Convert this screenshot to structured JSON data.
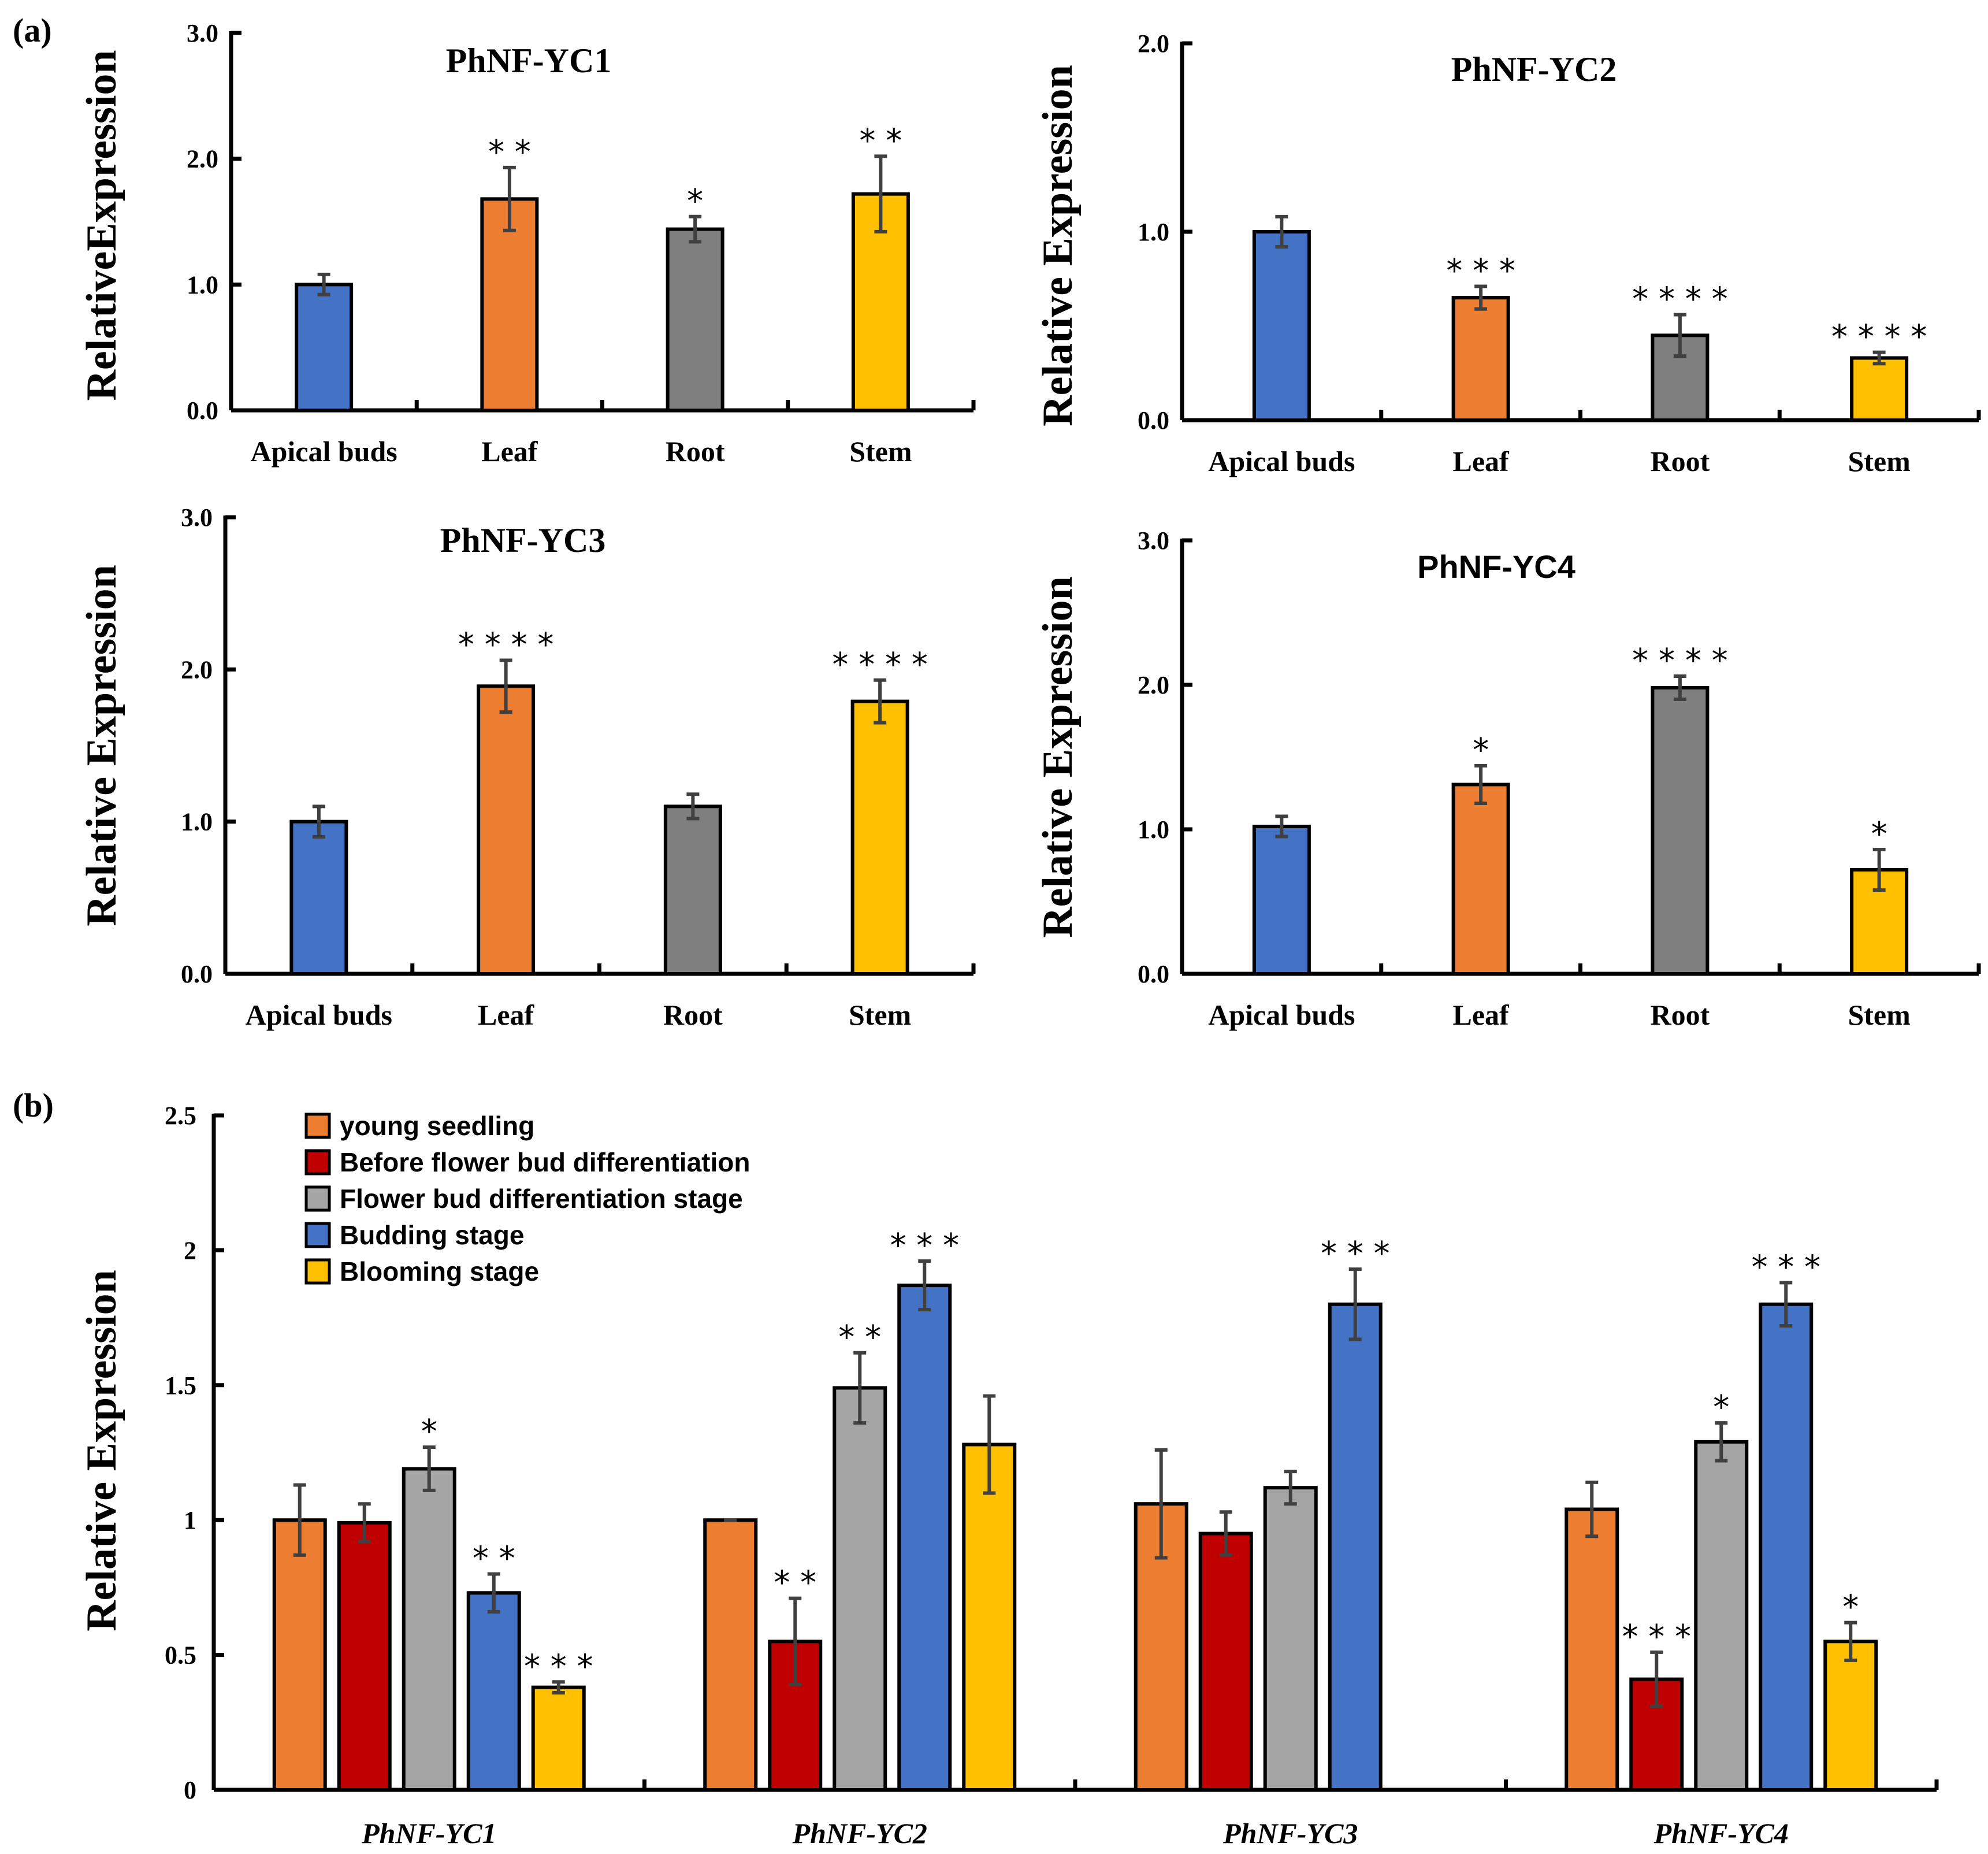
{
  "panel_labels": [
    "(a)",
    "(b)"
  ],
  "colors": {
    "blue": "#4472c4",
    "orange": "#ed7d31",
    "gray": "#7f7f7f",
    "lightgray": "#a5a5a5",
    "gold": "#ffc000",
    "red": "#c00000"
  },
  "chart_data": [
    {
      "id": "yc1",
      "type": "bar",
      "title": "PhNF-YC1",
      "ylabel": "RelativeExpression",
      "ylim": [
        0,
        3
      ],
      "yticks": [
        "0.0",
        "1.0",
        "2.0",
        "3.0"
      ],
      "categories": [
        "Apical buds",
        "Leaf",
        "Root",
        "Stem"
      ],
      "values": [
        1.0,
        1.68,
        1.44,
        1.72
      ],
      "errors": [
        0.08,
        0.25,
        0.1,
        0.3
      ],
      "significance": [
        "",
        "* *",
        "*",
        "* *"
      ],
      "bar_colors": [
        "blue",
        "orange",
        "gray",
        "gold"
      ]
    },
    {
      "id": "yc2",
      "type": "bar",
      "title": "PhNF-YC2",
      "ylabel": "Relative Expression",
      "ylim": [
        0,
        2
      ],
      "yticks": [
        "0.0",
        "1.0",
        "2.0"
      ],
      "categories": [
        "Apical buds",
        "Leaf",
        "Root",
        "Stem"
      ],
      "values": [
        1.0,
        0.65,
        0.45,
        0.33
      ],
      "errors": [
        0.08,
        0.06,
        0.11,
        0.03
      ],
      "significance": [
        "",
        "* * *",
        "* * * *",
        "* * * *"
      ],
      "bar_colors": [
        "blue",
        "orange",
        "gray",
        "gold"
      ]
    },
    {
      "id": "yc3",
      "type": "bar",
      "title": "PhNF-YC3",
      "ylabel": "Relative Expression",
      "ylim": [
        0,
        3
      ],
      "yticks": [
        "0.0",
        "1.0",
        "2.0",
        "3.0"
      ],
      "categories": [
        "Apical buds",
        "Leaf",
        "Root",
        "Stem"
      ],
      "values": [
        1.0,
        1.89,
        1.1,
        1.79
      ],
      "errors": [
        0.1,
        0.17,
        0.08,
        0.14
      ],
      "significance": [
        "",
        "* * * *",
        "",
        "* * * *"
      ],
      "bar_colors": [
        "blue",
        "orange",
        "gray",
        "gold"
      ]
    },
    {
      "id": "yc4",
      "type": "bar",
      "title": "PhNF-YC4",
      "ylabel": "Relative Expression",
      "ylim": [
        0,
        3
      ],
      "yticks": [
        "0.0",
        "1.0",
        "2.0",
        "3.0"
      ],
      "categories": [
        "Apical buds",
        "Leaf",
        "Root",
        "Stem"
      ],
      "values": [
        1.02,
        1.31,
        1.98,
        0.72
      ],
      "errors": [
        0.07,
        0.13,
        0.08,
        0.14
      ],
      "significance": [
        "",
        "*",
        "* * * *",
        "*"
      ],
      "bar_colors": [
        "blue",
        "orange",
        "gray",
        "gold"
      ]
    },
    {
      "id": "stages",
      "type": "bar",
      "ylabel": "Relative Expression",
      "ylim": [
        0,
        2.5
      ],
      "yticks": [
        "0",
        "0.5",
        "1",
        "1.5",
        "2",
        "2.5"
      ],
      "categories": [
        "PhNF-YC1",
        "PhNF-YC2",
        "PhNF-YC3",
        "PhNF-YC4"
      ],
      "legend_position": "top-left",
      "series": [
        {
          "name": "young seedling",
          "color": "orange",
          "values": [
            1.0,
            1.0,
            1.06,
            1.04
          ],
          "errors": [
            0.13,
            0.0,
            0.2,
            0.1
          ],
          "significance": [
            "",
            "",
            "",
            ""
          ]
        },
        {
          "name": "Before flower bud differentiation",
          "color": "red",
          "values": [
            0.99,
            0.55,
            0.95,
            0.41
          ],
          "errors": [
            0.07,
            0.16,
            0.08,
            0.1
          ],
          "significance": [
            "",
            "* *",
            "",
            "* * *"
          ]
        },
        {
          "name": "Flower bud differentiation stage",
          "color": "lightgray",
          "values": [
            1.19,
            1.49,
            1.12,
            1.29
          ],
          "errors": [
            0.08,
            0.13,
            0.06,
            0.07
          ],
          "significance": [
            "*",
            "* *",
            "",
            "*"
          ]
        },
        {
          "name": "Budding stage",
          "color": "blue",
          "values": [
            0.73,
            1.87,
            1.8,
            1.8
          ],
          "errors": [
            0.07,
            0.09,
            0.13,
            0.08
          ],
          "significance": [
            "* *",
            "* * *",
            "* * *",
            "* * *"
          ]
        },
        {
          "name": "Blooming stage",
          "color": "gold",
          "values": [
            0.38,
            1.28,
            null,
            0.55
          ],
          "errors": [
            0.02,
            0.18,
            null,
            0.07
          ],
          "significance": [
            "* * *",
            "",
            "",
            "*"
          ]
        }
      ]
    }
  ]
}
